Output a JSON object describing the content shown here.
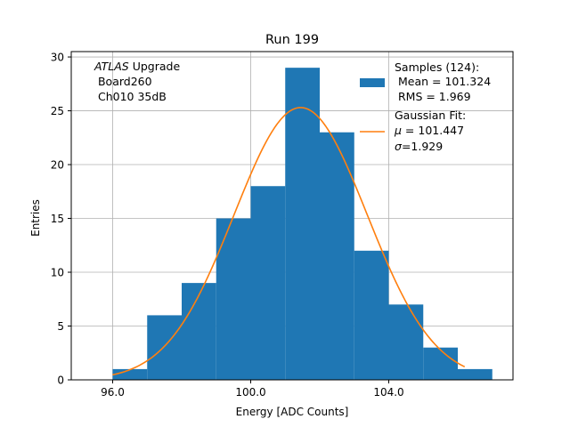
{
  "chart_data": {
    "type": "bar",
    "title": "Run 199",
    "xlabel": "Energy [ADC Counts]",
    "ylabel": "Entries",
    "xlim": [
      94.8,
      107.6
    ],
    "ylim": [
      0,
      30.5
    ],
    "xticks": [
      96,
      100,
      104
    ],
    "xtick_labels": [
      "96.0",
      "100.0",
      "104.0"
    ],
    "yticks": [
      0,
      5,
      10,
      15,
      20,
      25,
      30
    ],
    "grid": true,
    "bin_edges": [
      96,
      97,
      98,
      99,
      100,
      101,
      102,
      103,
      104,
      105,
      106,
      107
    ],
    "counts": [
      1,
      6,
      9,
      15,
      18,
      29,
      23,
      12,
      7,
      3,
      1
    ],
    "fit": {
      "mu": 101.447,
      "sigma": 1.929,
      "amplitude": 25.3,
      "x_range": [
        96,
        106.2
      ]
    },
    "bar_color": "#1f77b4",
    "fit_color": "#ff7f0e",
    "annotation": {
      "experiment": "ATLAS",
      "line1_suffix": " Upgrade",
      "line2": " Board260",
      "line3": " Ch010 35dB"
    },
    "legend": {
      "position": "top-right",
      "samples_title": "Samples (124):",
      "samples_mean": " Mean = 101.324",
      "samples_rms": " RMS = 1.969",
      "fit_title": "Gaussian Fit:",
      "fit_mu_sym": "μ",
      "fit_mu_val": " = 101.447",
      "fit_sigma_sym": "σ",
      "fit_sigma_val": "=1.929"
    }
  }
}
